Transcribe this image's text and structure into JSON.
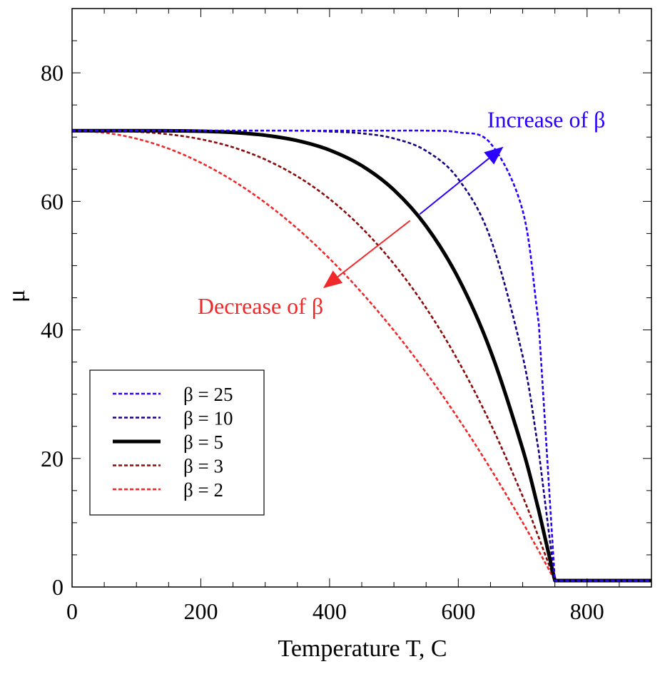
{
  "chart_data": {
    "type": "line",
    "title": "",
    "xlabel": "Temperature T, C",
    "ylabel": "μ",
    "xlim": [
      0,
      900
    ],
    "ylim": [
      0,
      90
    ],
    "xticks": [
      0,
      200,
      400,
      600,
      800
    ],
    "xtick_labels": [
      "0",
      "200",
      "400",
      "600",
      "800"
    ],
    "yticks": [
      0,
      20,
      40,
      60,
      80
    ],
    "ytick_labels": [
      "0",
      "20",
      "40",
      "60",
      "80"
    ],
    "x_minor_step": 50,
    "y_minor_step": 5,
    "grid": false,
    "legend_position": "lower-left",
    "x": [
      0,
      50,
      100,
      150,
      200,
      250,
      300,
      350,
      400,
      450,
      500,
      550,
      600,
      650,
      700,
      725,
      750,
      800,
      850,
      900
    ],
    "series": [
      {
        "name": "β = 25",
        "color": "#2a00ff",
        "style": "dashed",
        "width": "thin",
        "values": [
          71,
          71,
          71,
          71,
          71,
          71,
          71,
          71,
          71,
          71,
          71,
          71,
          70.74,
          69.04,
          58.54,
          41.0,
          1,
          1,
          1,
          1
        ]
      },
      {
        "name": "β = 10",
        "color": "#1a0080",
        "style": "dashed",
        "width": "thin",
        "values": [
          71,
          71,
          71,
          71,
          71,
          71,
          71,
          70.99,
          70.87,
          70.58,
          69.79,
          67.86,
          63.48,
          54.26,
          35.89,
          21.1,
          1,
          1,
          1,
          1
        ]
      },
      {
        "name": "β = 5",
        "color": "#000000",
        "style": "solid",
        "width": "thick",
        "values": [
          71,
          71,
          71,
          70.98,
          70.91,
          70.71,
          70.28,
          69.45,
          67.98,
          65.55,
          61.78,
          56.15,
          48.06,
          36.77,
          21.43,
          11.9,
          1,
          1,
          1,
          1
        ]
      },
      {
        "name": "β = 3",
        "color": "#8b0a0a",
        "style": "dashed",
        "width": "thin",
        "values": [
          71,
          70.98,
          70.83,
          70.44,
          69.67,
          68.41,
          66.52,
          63.89,
          60.38,
          55.88,
          50.26,
          43.4,
          35.16,
          25.43,
          14.09,
          7.7,
          1,
          1,
          1,
          1
        ]
      },
      {
        "name": "β = 2",
        "color": "#f0282a",
        "style": "dashed",
        "width": "thin",
        "values": [
          71,
          70.69,
          69.76,
          68.2,
          66.02,
          63.22,
          59.8,
          55.76,
          51.09,
          45.8,
          39.89,
          33.36,
          26.2,
          18.42,
          10.02,
          5.6,
          1,
          1,
          1,
          1
        ]
      }
    ],
    "annotations": [
      {
        "text": "Increase of β",
        "color": "#2a00ff",
        "arrow_from": [
          540,
          58
        ],
        "arrow_to": [
          670,
          68.5
        ],
        "text_at": [
          645,
          71.5
        ]
      },
      {
        "text": "Decrease of β",
        "color": "#f0282a",
        "arrow_from": [
          525,
          57
        ],
        "arrow_to": [
          390,
          46.5
        ],
        "text_at": [
          195,
          42.5
        ]
      }
    ]
  }
}
